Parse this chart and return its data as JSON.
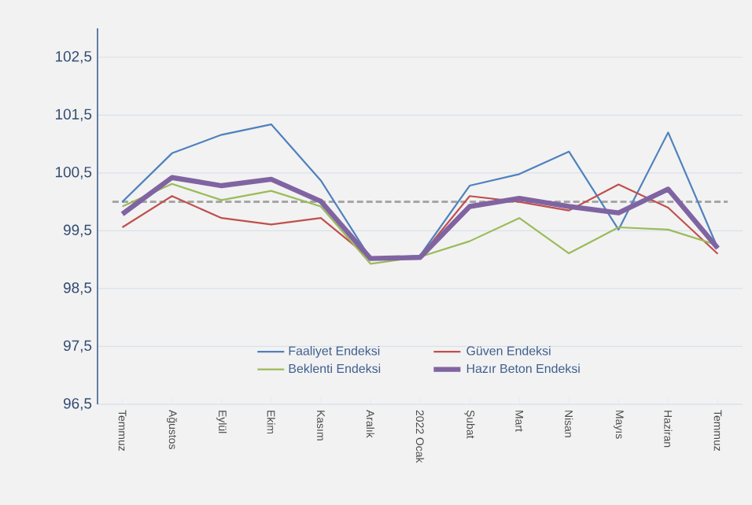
{
  "chart_data": {
    "type": "line",
    "categories": [
      "Temmuz",
      "Ağustos",
      "Eylül",
      "Ekim",
      "Kasım",
      "Aralık",
      "2022 Ocak",
      "Şubat",
      "Mart",
      "Nisan",
      "Mayıs",
      "Haziran",
      "Temmuz"
    ],
    "series": [
      {
        "name": "Faaliyet Endeksi",
        "color": "#4f81bd",
        "values": [
          100.0,
          100.84,
          101.16,
          101.34,
          100.37,
          99.02,
          99.07,
          100.28,
          100.48,
          100.87,
          99.52,
          101.2,
          99.2
        ]
      },
      {
        "name": "Güven Endeksi",
        "color": "#c0504d",
        "values": [
          99.56,
          100.1,
          99.72,
          99.61,
          99.72,
          99.02,
          99.05,
          100.1,
          100.0,
          99.85,
          100.3,
          99.9,
          99.1
        ]
      },
      {
        "name": "Beklenti Endeksi",
        "color": "#9bbb59",
        "values": [
          99.92,
          100.31,
          100.03,
          100.19,
          99.92,
          98.93,
          99.05,
          99.32,
          99.72,
          99.11,
          99.56,
          99.52,
          99.25
        ]
      },
      {
        "name": "Hazır Beton Endeksi",
        "color": "#8064a2",
        "values": [
          99.79,
          100.42,
          100.28,
          100.39,
          100.01,
          99.02,
          99.04,
          99.92,
          100.06,
          99.92,
          99.81,
          100.22,
          99.2
        ]
      }
    ],
    "ylim": [
      96.5,
      103
    ],
    "yticks": [
      {
        "value": 96.5,
        "label": "96,5"
      },
      {
        "value": 97.5,
        "label": "97,5"
      },
      {
        "value": 98.5,
        "label": "98,5"
      },
      {
        "value": 99.5,
        "label": "99,5"
      },
      {
        "value": 100.5,
        "label": "100,5"
      },
      {
        "value": 101.5,
        "label": "101,5"
      },
      {
        "value": 102.5,
        "label": "102,5"
      }
    ],
    "ref_lines": [
      {
        "axis": "y",
        "value": 100,
        "color": "#a6a6a6",
        "line_style": "dashed"
      }
    ],
    "grid": "y",
    "legend": "bottom",
    "marker": "none",
    "line_style": "solid"
  }
}
